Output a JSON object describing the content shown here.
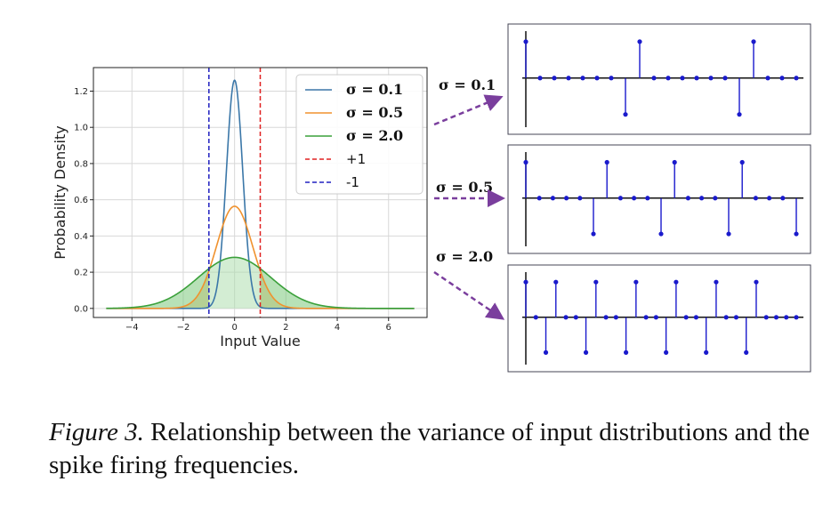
{
  "chart_data": [
    {
      "type": "line",
      "xlabel": "Input Value",
      "ylabel": "Probability Density",
      "xlim": [
        -5.5,
        7.5
      ],
      "ylim": [
        -0.05,
        1.33
      ],
      "xticks": [
        -4,
        -2,
        0,
        2,
        4,
        6
      ],
      "xtick_labels": [
        "−4",
        "−2",
        "0",
        "2",
        "4",
        "6"
      ],
      "yticks": [
        0.0,
        0.2,
        0.4,
        0.6,
        0.8,
        1.0,
        1.2
      ],
      "ytick_labels": [
        "0.0",
        "0.2",
        "0.4",
        "0.6",
        "0.8",
        "1.0",
        "1.2"
      ],
      "grid": true,
      "legend_position": "top-right",
      "x_range": [
        -5,
        7
      ],
      "series": [
        {
          "name": "σ = 0.1",
          "kind": "gaussian",
          "sigma": 0.316,
          "peak": 1.26,
          "color": "#3b77a8"
        },
        {
          "name": "σ = 0.5",
          "kind": "gaussian",
          "sigma": 0.707,
          "peak": 0.564,
          "color": "#f0922e"
        },
        {
          "name": "σ = 2.0",
          "kind": "gaussian",
          "sigma": 1.414,
          "peak": 0.282,
          "color": "#3aa03a",
          "fill": true
        },
        {
          "name": "+1",
          "kind": "vline",
          "x": 1,
          "color": "#e02020",
          "dashed": true
        },
        {
          "name": "-1",
          "kind": "vline",
          "x": -1,
          "color": "#2020c0",
          "dashed": true
        }
      ]
    },
    {
      "type": "stem",
      "label": "σ = 0.1",
      "values": [
        1,
        0,
        0,
        0,
        0,
        0,
        0,
        -1,
        1,
        0,
        0,
        0,
        0,
        0,
        0,
        -1,
        1,
        0,
        0,
        0
      ]
    },
    {
      "type": "stem",
      "label": "σ = 0.5",
      "values": [
        1,
        0,
        0,
        0,
        0,
        -1,
        1,
        0,
        0,
        0,
        -1,
        1,
        0,
        0,
        0,
        -1,
        1,
        0,
        0,
        0,
        -1
      ]
    },
    {
      "type": "stem",
      "label": "σ = 2.0",
      "values": [
        1,
        0,
        -1,
        1,
        0,
        0,
        -1,
        1,
        0,
        0,
        -1,
        1,
        0,
        0,
        -1,
        1,
        0,
        0,
        -1,
        1,
        0,
        0,
        -1,
        1,
        0,
        0,
        0,
        0
      ]
    }
  ],
  "caption": {
    "figure_label": "Figure 3.",
    "text": " Relationship between the variance of input distributions and the spike firing frequencies."
  }
}
